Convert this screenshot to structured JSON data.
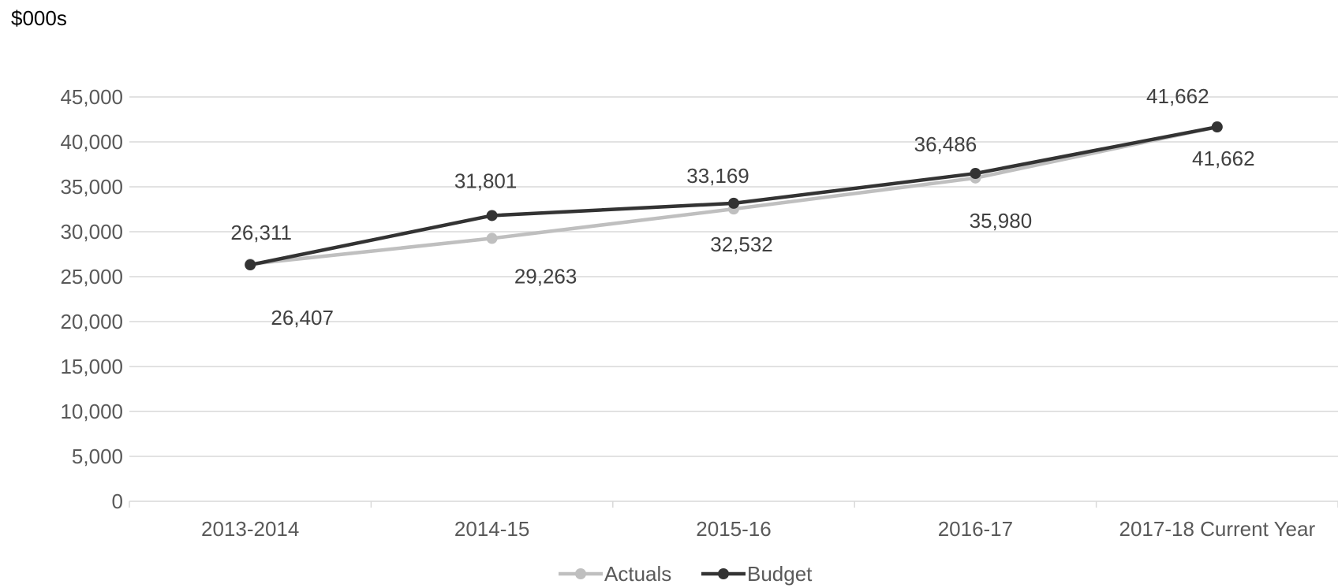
{
  "chart_data": {
    "type": "line",
    "unit_label": "$000s",
    "title": "",
    "xlabel": "",
    "ylabel": "",
    "categories": [
      "2013-2014",
      "2014-15",
      "2015-16",
      "2016-17",
      "2017-18 Current Year"
    ],
    "ylim": [
      0,
      45000
    ],
    "ytick_step": 5000,
    "yticks": [
      "0",
      "5,000",
      "10,000",
      "15,000",
      "20,000",
      "25,000",
      "30,000",
      "35,000",
      "40,000",
      "45,000"
    ],
    "grid": true,
    "legend_position": "bottom",
    "series": [
      {
        "name": "Actuals",
        "color": "#BFBFBF",
        "values": [
          26407,
          29263,
          32532,
          35980,
          41662
        ],
        "labels": [
          "26,407",
          "29,263",
          "32,532",
          "35,980",
          "41,662"
        ],
        "label_position": "below"
      },
      {
        "name": "Budget",
        "color": "#333333",
        "values": [
          26311,
          31801,
          33169,
          36486,
          41662
        ],
        "labels": [
          "26,311",
          "31,801",
          "33,169",
          "36,486",
          "41,662"
        ],
        "label_position": "above"
      }
    ]
  }
}
